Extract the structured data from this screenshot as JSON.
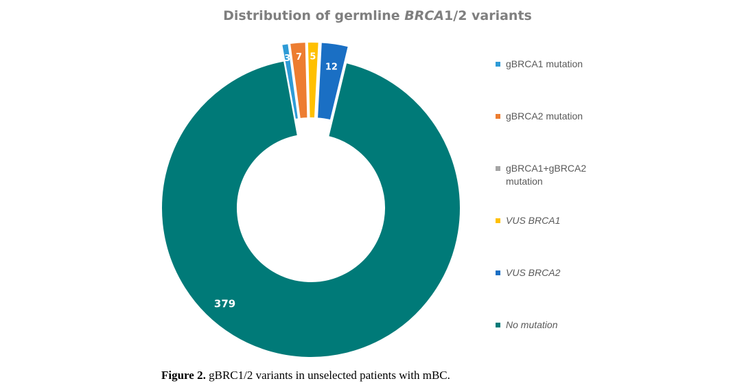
{
  "figure": {
    "title_prefix": "Distribution of germline ",
    "title_italic": "BRCA",
    "title_suffix": "1/2 variants",
    "caption_label": "Figure 2.",
    "caption_text": " gBRC1/2 variants in unselected patients with mBC."
  },
  "chart_data": {
    "type": "pie",
    "subtype": "donut",
    "title": "Distribution of germline BRCA1/2 variants",
    "categories": [
      "gBRCA1 mutation",
      "gBRCA2 mutation",
      "gBRCA1+gBRCA2 mutation",
      "VUS BRCA1",
      "VUS BRCA2",
      "No mutation"
    ],
    "values": [
      3,
      7,
      0,
      5,
      12,
      379
    ],
    "data_labels": [
      "3",
      "7",
      "",
      "5",
      "12",
      "379"
    ],
    "colors": [
      "#2e9bd6",
      "#ed7d31",
      "#a5a5a5",
      "#ffc000",
      "#1a6fc4",
      "#007a78"
    ],
    "exploded": [
      true,
      true,
      true,
      true,
      true,
      false
    ],
    "legend_position": "right",
    "legend_italic": [
      false,
      false,
      false,
      true,
      true,
      true
    ]
  }
}
